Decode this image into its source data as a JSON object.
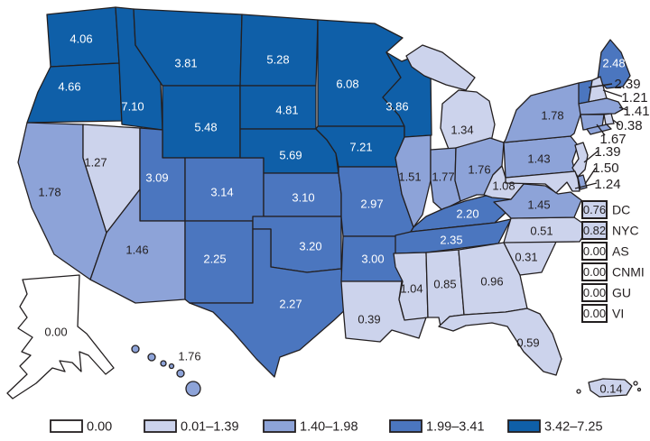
{
  "chart_data": {
    "type": "choropleth-map",
    "legend": [
      {
        "label": "0.00",
        "color": "#ffffff"
      },
      {
        "label": "0.01–1.39",
        "color": "#ccd3ec"
      },
      {
        "label": "1.40–1.98",
        "color": "#8da3d8"
      },
      {
        "label": "1.99–3.41",
        "color": "#4b76bf"
      },
      {
        "label": "3.42–7.25",
        "color": "#0f5fa8"
      }
    ],
    "category_thresholds": [
      0.0,
      1.39,
      1.98,
      3.41,
      7.25
    ],
    "outline_color": "#231f20",
    "dark_text_color": "#231f20",
    "light_text_color": "#ffffff",
    "states": [
      {
        "id": "WA",
        "value": "4.06"
      },
      {
        "id": "OR",
        "value": "4.66"
      },
      {
        "id": "CA",
        "value": "1.78"
      },
      {
        "id": "NV",
        "value": "1.27"
      },
      {
        "id": "ID",
        "value": "7.10"
      },
      {
        "id": "MT",
        "value": "3.81"
      },
      {
        "id": "WY",
        "value": "5.48"
      },
      {
        "id": "UT",
        "value": "3.09"
      },
      {
        "id": "CO",
        "value": "3.14"
      },
      {
        "id": "AZ",
        "value": "1.46"
      },
      {
        "id": "NM",
        "value": "2.25"
      },
      {
        "id": "ND",
        "value": "5.28"
      },
      {
        "id": "SD",
        "value": "4.81"
      },
      {
        "id": "NE",
        "value": "5.69"
      },
      {
        "id": "KS",
        "value": "3.10"
      },
      {
        "id": "OK",
        "value": "3.20"
      },
      {
        "id": "TX",
        "value": "2.27"
      },
      {
        "id": "MN",
        "value": "6.08"
      },
      {
        "id": "IA",
        "value": "7.21"
      },
      {
        "id": "MO",
        "value": "2.97"
      },
      {
        "id": "AR",
        "value": "3.00"
      },
      {
        "id": "LA",
        "value": "0.39"
      },
      {
        "id": "WI",
        "value": "3.86"
      },
      {
        "id": "IL",
        "value": "1.51"
      },
      {
        "id": "MI",
        "value": "1.34"
      },
      {
        "id": "IN",
        "value": "1.77"
      },
      {
        "id": "OH",
        "value": "1.76"
      },
      {
        "id": "KY",
        "value": "2.20"
      },
      {
        "id": "TN",
        "value": "2.35"
      },
      {
        "id": "MS",
        "value": "1.04"
      },
      {
        "id": "AL",
        "value": "0.85"
      },
      {
        "id": "GA",
        "value": "0.96"
      },
      {
        "id": "FL",
        "value": "0.59"
      },
      {
        "id": "SC",
        "value": "0.31"
      },
      {
        "id": "NC",
        "value": "0.51"
      },
      {
        "id": "VA",
        "value": "1.45"
      },
      {
        "id": "WV",
        "value": "1.08"
      },
      {
        "id": "PA",
        "value": "1.43"
      },
      {
        "id": "NY",
        "value": "1.78"
      },
      {
        "id": "ME",
        "value": "2.48"
      },
      {
        "id": "VT",
        "value": "2.39"
      },
      {
        "id": "NH",
        "value": "1.21"
      },
      {
        "id": "MA",
        "value": "1.41"
      },
      {
        "id": "RI",
        "value": "0.38"
      },
      {
        "id": "CT",
        "value": "1.67"
      },
      {
        "id": "NJ",
        "value": "1.39"
      },
      {
        "id": "DE",
        "value": "1.50"
      },
      {
        "id": "MD",
        "value": "1.24"
      },
      {
        "id": "AK",
        "value": "0.00"
      },
      {
        "id": "HI",
        "value": "1.76"
      },
      {
        "id": "PR",
        "value": "0.14"
      }
    ],
    "territory_boxes": [
      {
        "value": "0.76",
        "label": "DC"
      },
      {
        "value": "0.82",
        "label": "NYC"
      },
      {
        "value": "0.00",
        "label": "AS"
      },
      {
        "value": "0.00",
        "label": "CNMI"
      },
      {
        "value": "0.00",
        "label": "GU"
      },
      {
        "value": "0.00",
        "label": "VI"
      }
    ]
  }
}
